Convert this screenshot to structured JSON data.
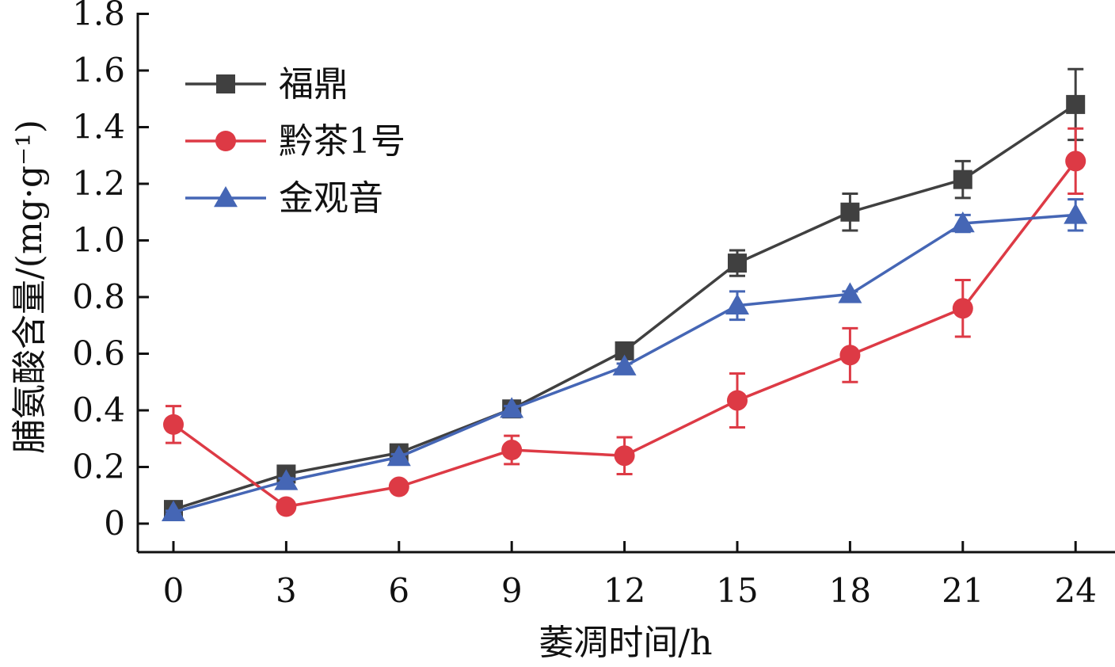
{
  "chart_data": {
    "type": "line",
    "xlabel": "萎凋时间/h",
    "ylabel": "脯氨酸含量/(mg·g⁻¹)",
    "x": [
      0,
      3,
      6,
      9,
      12,
      15,
      18,
      21,
      24
    ],
    "x_tick_labels": [
      "0",
      "3",
      "6",
      "9",
      "12",
      "15",
      "18",
      "21",
      "24"
    ],
    "y_tick_labels": [
      "0",
      "0.2",
      "0.4",
      "0.6",
      "0.8",
      "1.0",
      "1.2",
      "1.4",
      "1.6",
      "1.8"
    ],
    "ylim": [
      0,
      1.8
    ],
    "grid": false,
    "legend_position": "top-left",
    "series": [
      {
        "name": "福鼎",
        "color": "#404040",
        "marker": "square",
        "values": [
          0.05,
          0.175,
          0.25,
          0.405,
          0.61,
          0.92,
          1.1,
          1.215,
          1.48
        ],
        "errors": [
          0.01,
          0.01,
          0.01,
          0.01,
          0.015,
          0.045,
          0.065,
          0.065,
          0.125
        ]
      },
      {
        "name": "黔茶1号",
        "color": "#dd3a45",
        "marker": "circle",
        "values": [
          0.35,
          0.06,
          0.13,
          0.26,
          0.24,
          0.435,
          0.595,
          0.76,
          1.28
        ],
        "errors": [
          0.065,
          0.015,
          0.01,
          0.05,
          0.065,
          0.095,
          0.095,
          0.1,
          0.115
        ]
      },
      {
        "name": "金观音",
        "color": "#4566b5",
        "marker": "triangle",
        "values": [
          0.04,
          0.15,
          0.235,
          0.405,
          0.555,
          0.77,
          0.81,
          1.06,
          1.09
        ],
        "errors": [
          0.005,
          0.01,
          0.01,
          0.01,
          0.01,
          0.05,
          0.01,
          0.03,
          0.055
        ]
      }
    ]
  }
}
